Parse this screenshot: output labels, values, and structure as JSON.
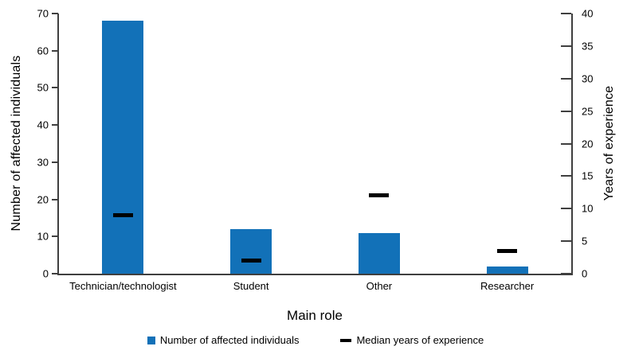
{
  "chart_data": {
    "type": "bar",
    "title": "",
    "categories": [
      "Technician/technologist",
      "Student",
      "Other",
      "Researcher"
    ],
    "series": [
      {
        "name": "Number of affected individuals",
        "type": "bar",
        "axis": "left",
        "color": "#1271B8",
        "values": [
          68,
          12,
          11,
          2
        ]
      },
      {
        "name": "Median years of experience",
        "type": "dash",
        "axis": "right",
        "color": "#000000",
        "values": [
          9,
          2,
          12,
          3.5
        ]
      }
    ],
    "xlabel": "Main role",
    "ylabel_left": "Number of affected individuals",
    "ylabel_right": "Years of experience",
    "ylim_left": [
      0,
      70
    ],
    "yticks_left": [
      0,
      10,
      20,
      30,
      40,
      50,
      60,
      70
    ],
    "ylim_right": [
      0,
      40
    ],
    "yticks_right": [
      0,
      5,
      10,
      15,
      20,
      25,
      30,
      35,
      40
    ],
    "grid": false,
    "legend_position": "bottom"
  },
  "colors": {
    "bar": "#1271B8",
    "axis_line": "#3F3F3F",
    "text": "#000000"
  }
}
